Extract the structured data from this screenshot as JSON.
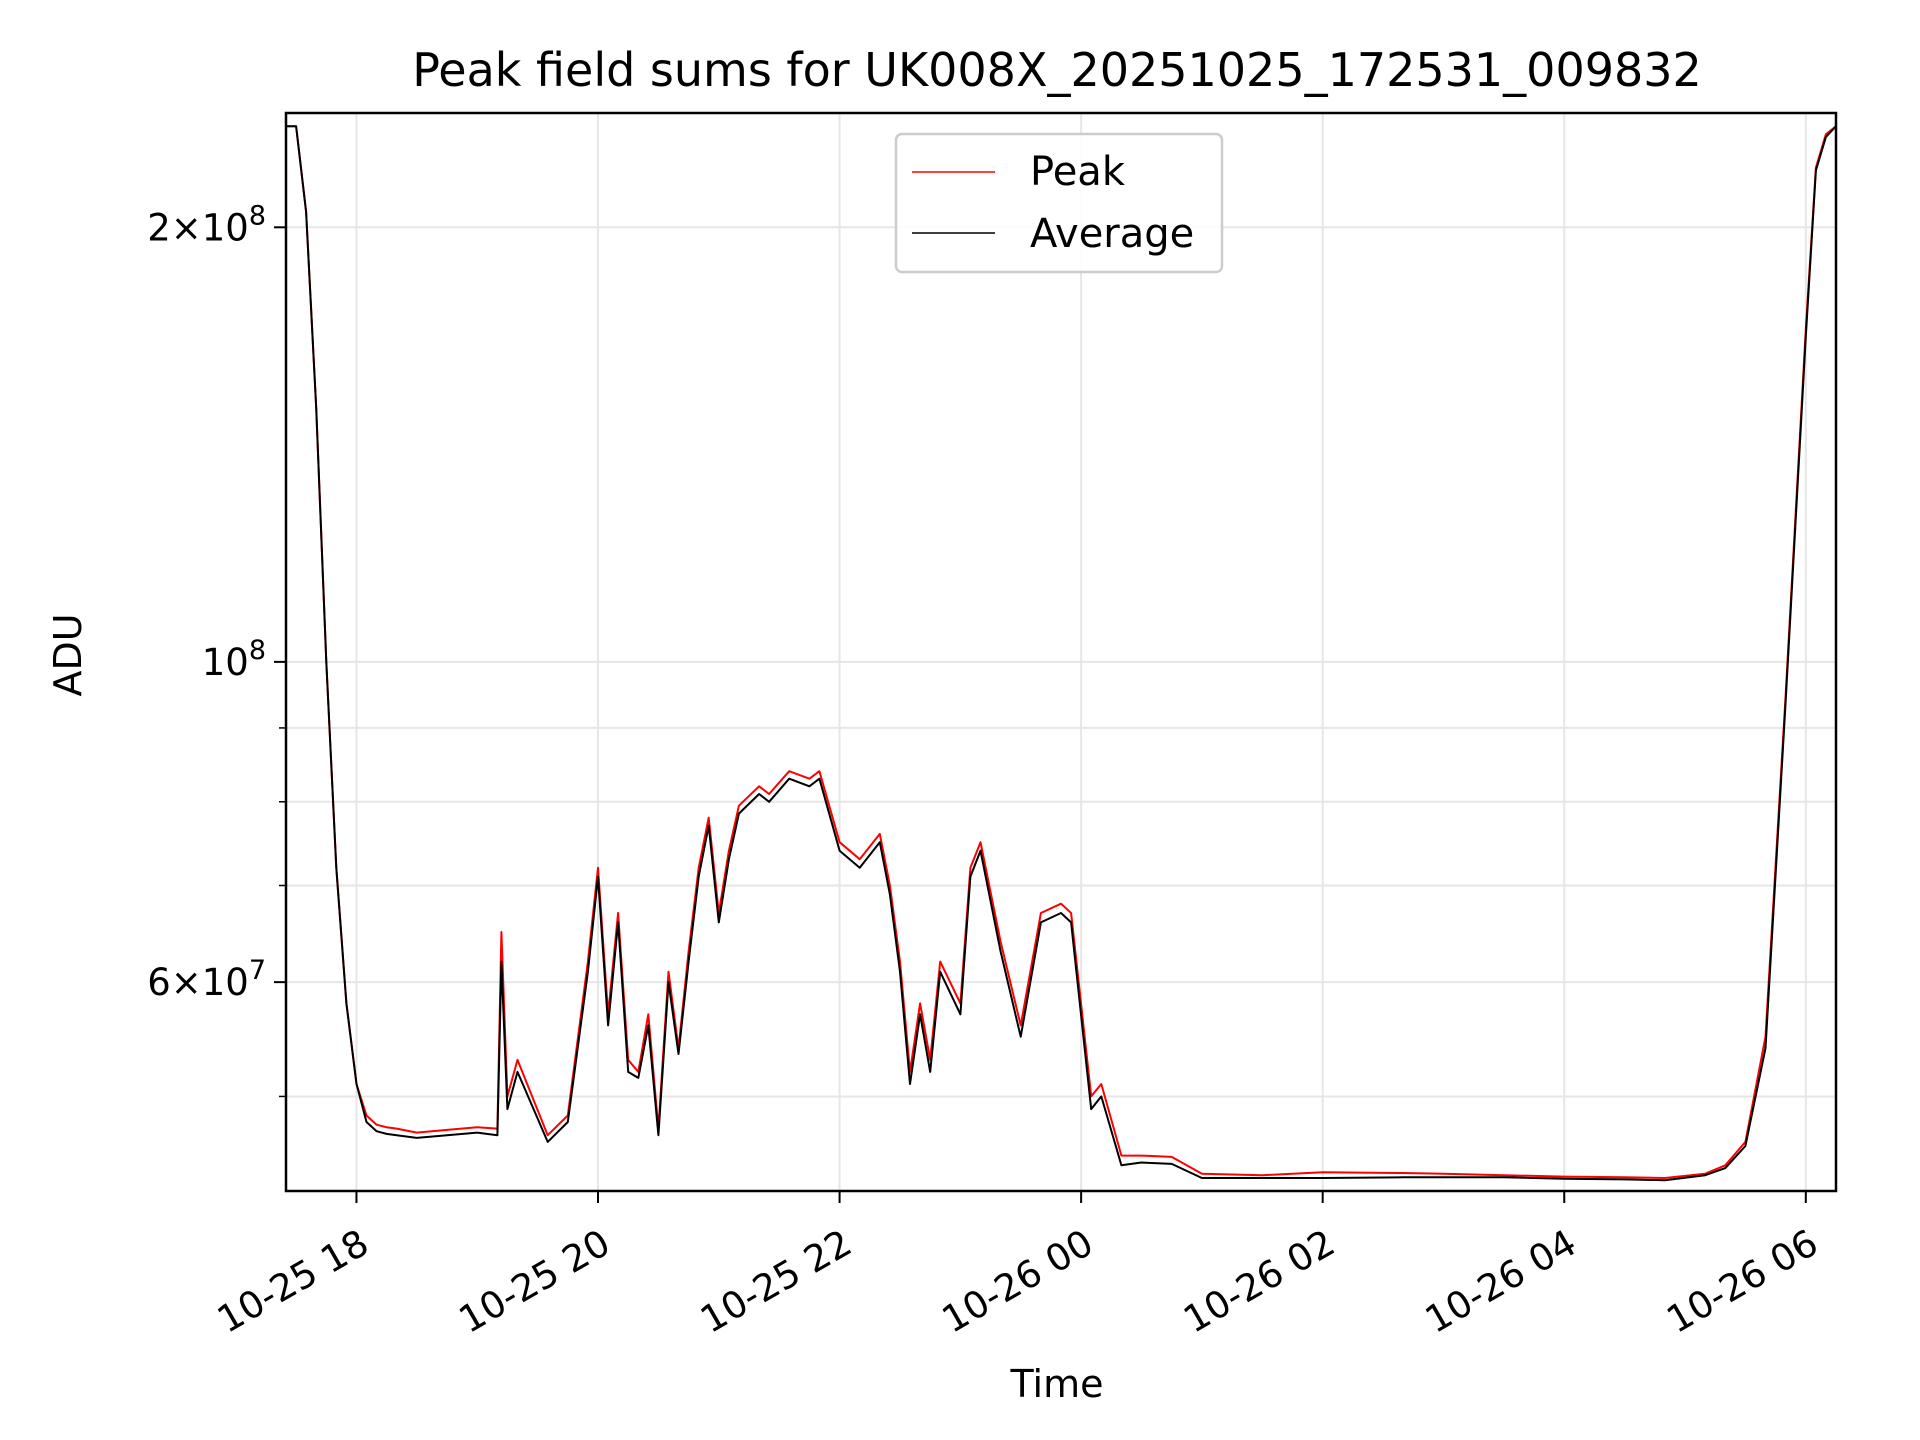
{
  "chart_data": {
    "type": "line",
    "title": "Peak field sums for UK008X_20251025_172531_009832",
    "xlabel": "Time",
    "ylabel": "ADU",
    "y_scale": "log",
    "grid": true,
    "legend_position": "upper center",
    "xlim": [
      "2025-10-25 17:25",
      "2025-10-26 06:15"
    ],
    "ylim": [
      43000000,
      240000000
    ],
    "x_ticks": [
      "10-25 18",
      "10-25 20",
      "10-25 22",
      "10-26 00",
      "10-26 02",
      "10-26 04",
      "10-26 06"
    ],
    "y_ticks": [
      {
        "label_base": "2",
        "label_exp": "8",
        "value": 200000000
      },
      {
        "label_base": "",
        "label_exp": "8",
        "value": 100000000
      },
      {
        "label_base": "6",
        "label_exp": "7",
        "value": 60000000
      }
    ],
    "y_minor_ticks": [
      50000000,
      70000000,
      80000000,
      90000000
    ],
    "series": [
      {
        "name": "Peak",
        "color": "#ff0000",
        "x": [
          "2025-10-25 17:25",
          "2025-10-25 17:30",
          "2025-10-25 17:35",
          "2025-10-25 17:40",
          "2025-10-25 17:45",
          "2025-10-25 17:50",
          "2025-10-25 17:55",
          "2025-10-25 18:00",
          "2025-10-25 18:05",
          "2025-10-25 18:10",
          "2025-10-25 18:15",
          "2025-10-25 18:20",
          "2025-10-25 18:30",
          "2025-10-25 18:45",
          "2025-10-25 19:00",
          "2025-10-25 19:10",
          "2025-10-25 19:12",
          "2025-10-25 19:15",
          "2025-10-25 19:20",
          "2025-10-25 19:35",
          "2025-10-25 19:45",
          "2025-10-25 19:55",
          "2025-10-25 20:00",
          "2025-10-25 20:05",
          "2025-10-25 20:10",
          "2025-10-25 20:15",
          "2025-10-25 20:20",
          "2025-10-25 20:25",
          "2025-10-25 20:30",
          "2025-10-25 20:35",
          "2025-10-25 20:40",
          "2025-10-25 20:45",
          "2025-10-25 20:50",
          "2025-10-25 20:55",
          "2025-10-25 21:00",
          "2025-10-25 21:05",
          "2025-10-25 21:10",
          "2025-10-25 21:20",
          "2025-10-25 21:25",
          "2025-10-25 21:35",
          "2025-10-25 21:45",
          "2025-10-25 21:50",
          "2025-10-25 22:00",
          "2025-10-25 22:10",
          "2025-10-25 22:20",
          "2025-10-25 22:25",
          "2025-10-25 22:30",
          "2025-10-25 22:35",
          "2025-10-25 22:40",
          "2025-10-25 22:45",
          "2025-10-25 22:50",
          "2025-10-25 23:00",
          "2025-10-25 23:05",
          "2025-10-25 23:10",
          "2025-10-25 23:20",
          "2025-10-25 23:30",
          "2025-10-25 23:40",
          "2025-10-25 23:50",
          "2025-10-25 23:55",
          "2025-10-26 00:05",
          "2025-10-26 00:10",
          "2025-10-26 00:20",
          "2025-10-26 00:30",
          "2025-10-26 00:45",
          "2025-10-26 01:00",
          "2025-10-26 01:30",
          "2025-10-26 02:00",
          "2025-10-26 02:40",
          "2025-10-26 03:00",
          "2025-10-26 03:30",
          "2025-10-26 04:00",
          "2025-10-26 04:30",
          "2025-10-26 04:50",
          "2025-10-26 05:10",
          "2025-10-26 05:20",
          "2025-10-26 05:30",
          "2025-10-26 05:40",
          "2025-10-26 05:50",
          "2025-10-26 06:00",
          "2025-10-26 06:05",
          "2025-10-26 06:10",
          "2025-10-26 06:15"
        ],
        "y": [
          235000000,
          235000000,
          205000000,
          150000000,
          100000000,
          72000000,
          58000000,
          51000000,
          48500000,
          47800000,
          47600000,
          47500000,
          47200000,
          47400000,
          47600000,
          47500000,
          65000000,
          50000000,
          53000000,
          47000000,
          48500000,
          62000000,
          72000000,
          57000000,
          67000000,
          53000000,
          52000000,
          57000000,
          47500000,
          61000000,
          54000000,
          63000000,
          72000000,
          78000000,
          67000000,
          74000000,
          79500000,
          82000000,
          81000000,
          84000000,
          83000000,
          84000000,
          75000000,
          73000000,
          76000000,
          70000000,
          62000000,
          52000000,
          58000000,
          53000000,
          62000000,
          58000000,
          72000000,
          75000000,
          64000000,
          56000000,
          67000000,
          68000000,
          67000000,
          50000000,
          51000000,
          45500000,
          45500000,
          45400000,
          44200000,
          44100000,
          44300000,
          44250000,
          44200000,
          44100000,
          44000000,
          43950000,
          43900000,
          44200000,
          44800000,
          46500000,
          55000000,
          95000000,
          170000000,
          220000000,
          232000000,
          235000000
        ]
      },
      {
        "name": "Average",
        "color": "#000000",
        "x": [
          "2025-10-25 17:25",
          "2025-10-25 17:30",
          "2025-10-25 17:35",
          "2025-10-25 17:40",
          "2025-10-25 17:45",
          "2025-10-25 17:50",
          "2025-10-25 17:55",
          "2025-10-25 18:00",
          "2025-10-25 18:05",
          "2025-10-25 18:10",
          "2025-10-25 18:15",
          "2025-10-25 18:20",
          "2025-10-25 18:30",
          "2025-10-25 18:45",
          "2025-10-25 19:00",
          "2025-10-25 19:10",
          "2025-10-25 19:12",
          "2025-10-25 19:15",
          "2025-10-25 19:20",
          "2025-10-25 19:35",
          "2025-10-25 19:45",
          "2025-10-25 19:55",
          "2025-10-25 20:00",
          "2025-10-25 20:05",
          "2025-10-25 20:10",
          "2025-10-25 20:15",
          "2025-10-25 20:20",
          "2025-10-25 20:25",
          "2025-10-25 20:30",
          "2025-10-25 20:35",
          "2025-10-25 20:40",
          "2025-10-25 20:45",
          "2025-10-25 20:50",
          "2025-10-25 20:55",
          "2025-10-25 21:00",
          "2025-10-25 21:05",
          "2025-10-25 21:10",
          "2025-10-25 21:20",
          "2025-10-25 21:25",
          "2025-10-25 21:35",
          "2025-10-25 21:45",
          "2025-10-25 21:50",
          "2025-10-25 22:00",
          "2025-10-25 22:10",
          "2025-10-25 22:20",
          "2025-10-25 22:25",
          "2025-10-25 22:30",
          "2025-10-25 22:35",
          "2025-10-25 22:40",
          "2025-10-25 22:45",
          "2025-10-25 22:50",
          "2025-10-25 23:00",
          "2025-10-25 23:05",
          "2025-10-25 23:10",
          "2025-10-25 23:20",
          "2025-10-25 23:30",
          "2025-10-25 23:40",
          "2025-10-25 23:50",
          "2025-10-25 23:55",
          "2025-10-26 00:05",
          "2025-10-26 00:10",
          "2025-10-26 00:20",
          "2025-10-26 00:30",
          "2025-10-26 00:45",
          "2025-10-26 01:00",
          "2025-10-26 01:30",
          "2025-10-26 02:00",
          "2025-10-26 02:40",
          "2025-10-26 03:00",
          "2025-10-26 03:30",
          "2025-10-26 04:00",
          "2025-10-26 04:30",
          "2025-10-26 04:50",
          "2025-10-26 05:10",
          "2025-10-26 05:20",
          "2025-10-26 05:30",
          "2025-10-26 05:40",
          "2025-10-26 05:50",
          "2025-10-26 06:00",
          "2025-10-26 06:05",
          "2025-10-26 06:10",
          "2025-10-26 06:15"
        ],
        "y": [
          235000000,
          235000000,
          205000000,
          150000000,
          100000000,
          72000000,
          58000000,
          51000000,
          48000000,
          47300000,
          47100000,
          47000000,
          46800000,
          47000000,
          47200000,
          47000000,
          62000000,
          49000000,
          52000000,
          46500000,
          48000000,
          61000000,
          71000000,
          56000000,
          66000000,
          52000000,
          51500000,
          56000000,
          47000000,
          60000000,
          53500000,
          62000000,
          71000000,
          77000000,
          66000000,
          73000000,
          78500000,
          81000000,
          80000000,
          83000000,
          82000000,
          83000000,
          74000000,
          72000000,
          75000000,
          69000000,
          61000000,
          51000000,
          57000000,
          52000000,
          61000000,
          57000000,
          71000000,
          74000000,
          63000000,
          55000000,
          66000000,
          67000000,
          66000000,
          49000000,
          50000000,
          44800000,
          45000000,
          44900000,
          43900000,
          43900000,
          43900000,
          43950000,
          43950000,
          43950000,
          43850000,
          43800000,
          43750000,
          44100000,
          44600000,
          46200000,
          54000000,
          94000000,
          168000000,
          219000000,
          231000000,
          235000000
        ]
      }
    ]
  }
}
